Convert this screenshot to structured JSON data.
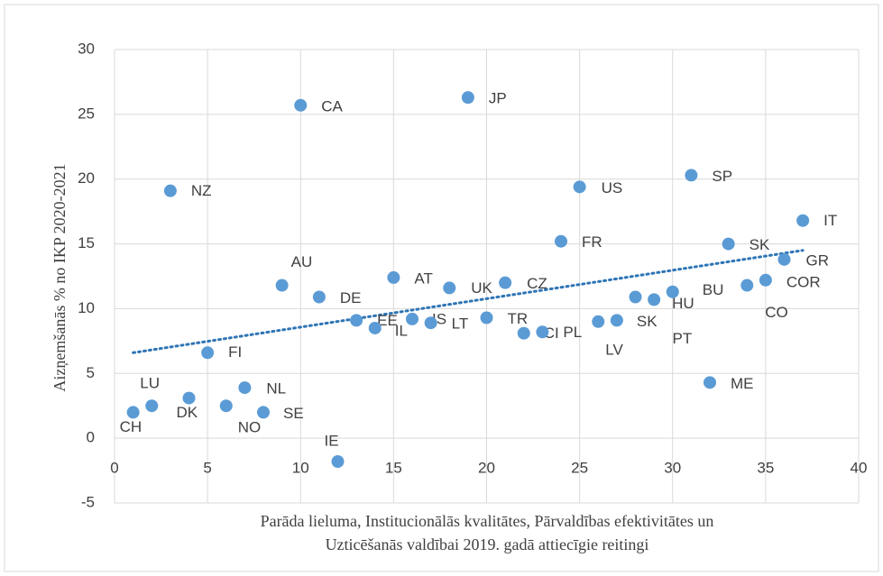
{
  "chart_data": {
    "type": "scatter",
    "ylabel": "Aizņemšanās % no IKP 2020-2021",
    "xlabel": [
      "Parāda lieluma, Institucionālās kvalitātes, Pārvaldības efektivitātes un",
      "Uzticēšanās valdībai 2019. gadā attiecīgie reitingi"
    ],
    "xlim": [
      0,
      40
    ],
    "xticks": [
      0,
      5,
      10,
      15,
      20,
      25,
      30,
      35,
      40
    ],
    "ylim": [
      -5,
      30
    ],
    "yticks": [
      -5,
      0,
      5,
      10,
      15,
      20,
      25,
      30
    ],
    "grid": true,
    "series": [
      {
        "color": "#5b9bd5",
        "x": [
          1,
          2,
          3,
          4,
          5,
          6,
          7,
          8,
          9,
          10,
          11,
          12,
          13,
          14,
          15,
          16,
          17,
          18,
          19,
          20,
          21,
          22,
          23,
          24,
          25,
          26,
          27,
          28,
          29,
          30,
          31,
          32,
          33,
          34,
          35,
          36,
          37
        ],
        "values": [
          2.0,
          2.5,
          19.1,
          3.1,
          6.6,
          2.5,
          3.9,
          2.0,
          11.8,
          25.7,
          10.9,
          -1.8,
          9.1,
          8.5,
          12.4,
          9.2,
          8.9,
          11.6,
          26.3,
          9.3,
          12.0,
          8.1,
          8.2,
          15.2,
          19.4,
          9.0,
          9.1,
          10.9,
          10.7,
          11.3,
          20.3,
          4.3,
          15.0,
          11.8,
          12.2,
          13.8,
          16.8
        ],
        "labels": [
          "CH",
          "LU",
          "NZ",
          "DK",
          "FI",
          "NO",
          "NL",
          "SE",
          "AU",
          "CA",
          "DE",
          "IE",
          "EE",
          "IL",
          "AT",
          "IS",
          "LT",
          "UK",
          "JP",
          "TR",
          "CZ",
          "CI",
          "PL",
          "FR",
          "US",
          "LV",
          "SK",
          "PT",
          "HU",
          "BU",
          "SP",
          "ME",
          "SK",
          "CO",
          "COR",
          "GR",
          "IT"
        ]
      }
    ],
    "trendline": {
      "color": "#2e75b6",
      "x": [
        1,
        37
      ],
      "y": [
        6.6,
        14.5
      ]
    }
  }
}
